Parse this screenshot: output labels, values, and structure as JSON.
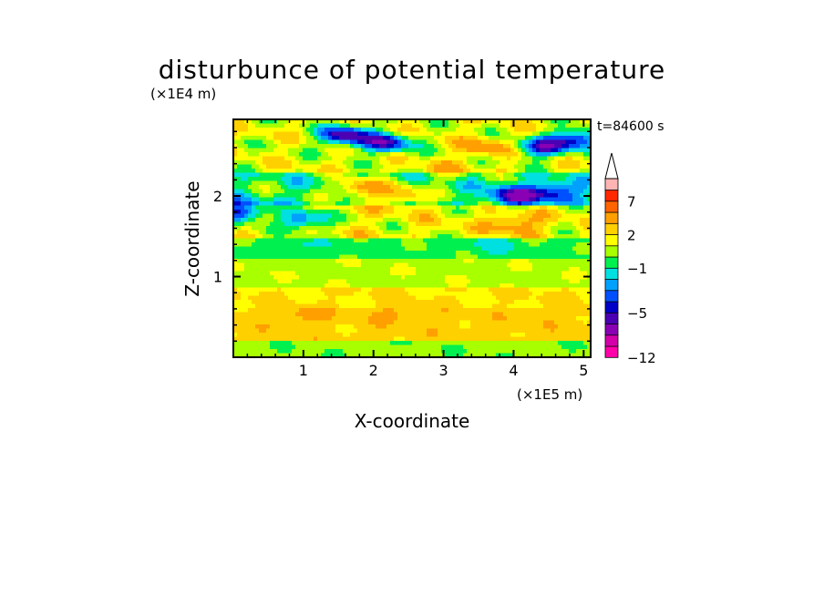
{
  "chart_data": {
    "type": "heatmap",
    "title": "disturbunce of potential temperature",
    "xlabel": "X-coordinate",
    "ylabel": "Z-coordinate",
    "x_unit": "(×1E5 m)",
    "y_unit": "(×1E4 m)",
    "time_label": "t=84600 s",
    "xlim": [
      0,
      5.1
    ],
    "ylim": [
      0,
      2.95
    ],
    "x_ticks": [
      1,
      2,
      3,
      4,
      5
    ],
    "y_ticks": [
      1,
      2
    ],
    "colorbar": {
      "levels": [
        -12,
        -10,
        -8,
        -6,
        -5,
        -4,
        -3,
        -2,
        -1,
        0,
        1,
        2,
        3,
        5,
        7,
        9,
        11
      ],
      "labeled_levels": [
        7,
        2,
        -1,
        -5,
        -12
      ],
      "colors": [
        "#ff00aa",
        "#d400aa",
        "#8a00b4",
        "#4b00b4",
        "#0000c8",
        "#0050ff",
        "#00a0ff",
        "#00e0e0",
        "#00f050",
        "#a8ff00",
        "#ffff00",
        "#ffd000",
        "#ffa000",
        "#ff6400",
        "#ff2800",
        "#ffb4b4"
      ],
      "extend": "max"
    },
    "bands": [
      {
        "z": [
          0,
          0.2
        ],
        "value": 0.3
      },
      {
        "z": [
          0.2,
          0.6
        ],
        "value": 2.5
      },
      {
        "z": [
          0.6,
          0.85
        ],
        "value": 2.0
      },
      {
        "z": [
          0.85,
          1.2
        ],
        "value": 0.7
      },
      {
        "z": [
          1.2,
          1.5
        ],
        "value": -0.3
      },
      {
        "z": [
          1.5,
          1.9
        ],
        "value": 1.5
      },
      {
        "z": [
          1.9,
          2.3
        ],
        "value": -0.5
      },
      {
        "z": [
          2.3,
          2.95
        ],
        "value": 1.2
      }
    ],
    "features": [
      {
        "x": 1.0,
        "z": 0.5,
        "value": 3.5
      },
      {
        "x": 1.3,
        "z": 0.35,
        "value": 2.2
      },
      {
        "x": 2.3,
        "z": 0.55,
        "value": 3.2
      },
      {
        "x": 4.4,
        "z": 0.55,
        "value": 2.8
      },
      {
        "x": 0.9,
        "z": 1.35,
        "value": -1.5
      },
      {
        "x": 1.0,
        "z": 1.7,
        "value": -3.5
      },
      {
        "x": 1.8,
        "z": 2.1,
        "value": 4.0
      },
      {
        "x": 2.4,
        "z": 2.0,
        "value": 3.5
      },
      {
        "x": 1.6,
        "z": 2.75,
        "value": -6.0
      },
      {
        "x": 2.2,
        "z": 2.65,
        "value": -5.0
      },
      {
        "x": 4.0,
        "z": 1.65,
        "value": 4.5
      },
      {
        "x": 3.7,
        "z": 1.4,
        "value": -1.5
      },
      {
        "x": 4.0,
        "z": 2.0,
        "value": -6.0
      },
      {
        "x": 4.6,
        "z": 2.05,
        "value": -5.0
      },
      {
        "x": 4.4,
        "z": 2.6,
        "value": -4.5
      },
      {
        "x": 4.9,
        "z": 2.7,
        "value": -5.0
      },
      {
        "x": 3.6,
        "z": 2.6,
        "value": 4.0
      },
      {
        "x": 0.1,
        "z": 1.8,
        "value": -5.0
      },
      {
        "x": 3.0,
        "z": 2.3,
        "value": 3.0
      }
    ]
  }
}
